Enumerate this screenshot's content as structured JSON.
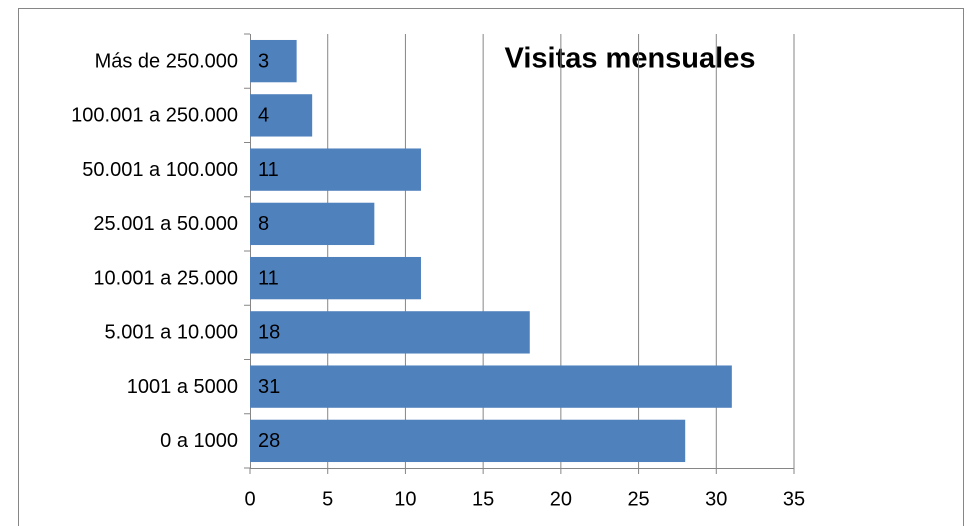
{
  "chart_data": {
    "type": "bar",
    "orientation": "horizontal",
    "title": "Visitas mensuales",
    "categories": [
      "0 a 1000",
      "1001 a 5000",
      "5.001 a 10.000",
      "10.001 a 25.000",
      "25.001 a 50.000",
      "50.001 a 100.000",
      "100.001 a 250.000",
      "Más de 250.000"
    ],
    "values": [
      28,
      31,
      18,
      11,
      8,
      11,
      4,
      3
    ],
    "color": "#4f81bd",
    "xlim": [
      0,
      35
    ],
    "xticks": [
      0,
      5,
      10,
      15,
      20,
      25,
      30,
      35
    ],
    "grid": true
  }
}
